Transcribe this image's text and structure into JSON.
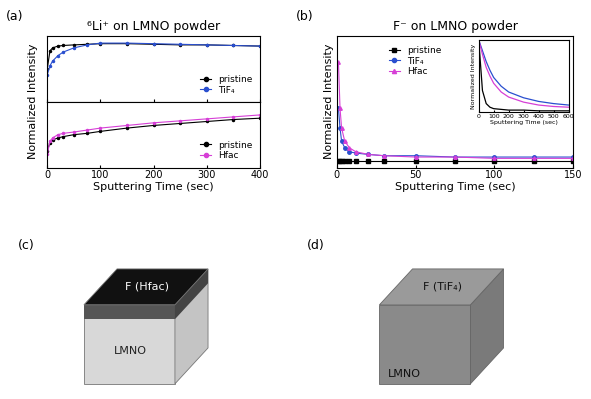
{
  "chart_data": [
    {
      "type": "line",
      "title": "⁶Li⁺ on LMNO powder",
      "ylabel": "Normalized Intensity",
      "annotations": [
        "(a)"
      ],
      "x": [
        0,
        5,
        10,
        20,
        30,
        50,
        75,
        100,
        150,
        200,
        250,
        300,
        350,
        400
      ],
      "series": [
        {
          "name": "pristine",
          "color": "#000000",
          "marker": "circle",
          "line_style": "solid",
          "values": [
            0.55,
            0.85,
            0.9,
            0.93,
            0.94,
            0.95,
            0.96,
            0.97,
            0.97,
            0.96,
            0.95,
            0.95,
            0.94,
            0.93
          ]
        },
        {
          "name": "TiF₄",
          "color": "#2a4fcf",
          "marker": "circle",
          "line_style": "solid",
          "values": [
            0.45,
            0.6,
            0.68,
            0.77,
            0.83,
            0.9,
            0.95,
            0.98,
            0.98,
            0.97,
            0.96,
            0.95,
            0.94,
            0.93
          ]
        }
      ],
      "xlim": [
        0,
        400
      ],
      "xticks": [
        0,
        100,
        200,
        300,
        400
      ],
      "ylim": [
        0,
        1.1
      ],
      "yticks": [],
      "tick_labels": false,
      "legend": "lower right"
    },
    {
      "type": "line",
      "xlabel": "Sputtering Time (sec)",
      "x": [
        0,
        5,
        10,
        20,
        30,
        50,
        75,
        100,
        150,
        200,
        250,
        300,
        350,
        400
      ],
      "series": [
        {
          "name": "pristine",
          "color": "#000000",
          "marker": "circle",
          "line_style": "solid",
          "values": [
            0.25,
            0.38,
            0.42,
            0.45,
            0.47,
            0.5,
            0.52,
            0.55,
            0.6,
            0.64,
            0.67,
            0.7,
            0.73,
            0.75
          ]
        },
        {
          "name": "Hfac",
          "color": "#d63fd6",
          "marker": "circle",
          "line_style": "solid",
          "values": [
            0.2,
            0.4,
            0.45,
            0.5,
            0.52,
            0.54,
            0.57,
            0.6,
            0.64,
            0.68,
            0.71,
            0.74,
            0.77,
            0.8
          ]
        }
      ],
      "xlim": [
        0,
        400
      ],
      "xticks": [
        0,
        100,
        200,
        300,
        400
      ],
      "ylim": [
        0,
        1
      ],
      "yticks": [],
      "tick_labels": "x",
      "legend": "lower right"
    },
    {
      "type": "line",
      "title": "F⁻ on LMNO powder",
      "xlabel": "Sputtering Time (sec)",
      "ylabel": "Normalized Intensity",
      "annotations": [
        "(b)"
      ],
      "x": [
        1,
        2,
        3,
        5,
        8,
        12,
        20,
        30,
        50,
        75,
        100,
        125,
        150
      ],
      "series": [
        {
          "name": "pristine",
          "color": "#000000",
          "marker": "square",
          "line_style": "solid",
          "values": [
            0.05,
            0.05,
            0.05,
            0.05,
            0.05,
            0.05,
            0.05,
            0.05,
            0.05,
            0.05,
            0.05,
            0.05,
            0.05
          ]
        },
        {
          "name": "TiF₄",
          "color": "#2a4fcf",
          "marker": "circle",
          "line_style": "solid",
          "values": [
            0.45,
            0.3,
            0.2,
            0.15,
            0.12,
            0.11,
            0.1,
            0.09,
            0.09,
            0.08,
            0.08,
            0.08,
            0.08
          ]
        },
        {
          "name": "Hfac",
          "color": "#d63fd6",
          "marker": "triangle",
          "line_style": "solid",
          "values": [
            0.8,
            0.45,
            0.3,
            0.2,
            0.15,
            0.12,
            0.1,
            0.09,
            0.08,
            0.08,
            0.07,
            0.07,
            0.07
          ]
        }
      ],
      "xlim": [
        0,
        150
      ],
      "xticks": [
        0,
        50,
        100,
        150
      ],
      "ylim": [
        0,
        1
      ],
      "yticks": [],
      "tick_labels": "x",
      "legend": "upper center"
    },
    {
      "type": "line",
      "xlabel": "Sputtering Time (sec)",
      "ylabel": "Normalized Intensity",
      "x": [
        0,
        25,
        50,
        75,
        100,
        150,
        200,
        300,
        400,
        500,
        600
      ],
      "series": [
        {
          "name": "pristine",
          "color": "#000000",
          "marker": "none",
          "line_style": "solid",
          "values": [
            1.0,
            0.3,
            0.12,
            0.07,
            0.05,
            0.04,
            0.03,
            0.03,
            0.02,
            0.02,
            0.02
          ]
        },
        {
          "name": "TiF₄",
          "color": "#2a4fcf",
          "marker": "none",
          "line_style": "solid",
          "values": [
            1.0,
            0.85,
            0.7,
            0.58,
            0.48,
            0.36,
            0.28,
            0.2,
            0.15,
            0.12,
            0.1
          ]
        },
        {
          "name": "Hfac",
          "color": "#d63fd6",
          "marker": "none",
          "line_style": "solid",
          "values": [
            1.0,
            0.8,
            0.62,
            0.5,
            0.4,
            0.28,
            0.21,
            0.14,
            0.1,
            0.08,
            0.07
          ]
        }
      ],
      "xlim": [
        0,
        600
      ],
      "xticks": [
        0,
        100,
        200,
        300,
        400,
        500,
        600
      ],
      "ylim": [
        0,
        1
      ],
      "yticks": [],
      "tick_labels": "x"
    }
  ],
  "diagram": {
    "panels": [
      {
        "label": "(c)",
        "top_face": "F (Hfac)",
        "body": "LMNO"
      },
      {
        "label": "(d)",
        "top_face": "F (TiF₄)",
        "body": "LMNO"
      }
    ]
  }
}
